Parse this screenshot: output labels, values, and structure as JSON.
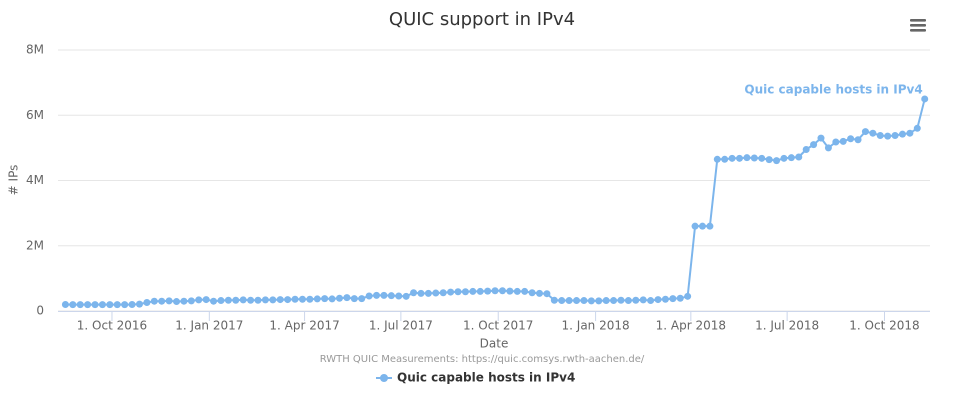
{
  "chart_data": {
    "type": "line",
    "title": "QUIC support in IPv4",
    "x_label": "Date",
    "y_label": "# IPs",
    "credits": "RWTH QUIC Measurements: https://quic.comsys.rwth-aachen.de/",
    "x": [
      "2016-08-18",
      "2016-08-25",
      "2016-09-01",
      "2016-09-08",
      "2016-09-15",
      "2016-09-22",
      "2016-09-29",
      "2016-10-06",
      "2016-10-13",
      "2016-10-20",
      "2016-10-27",
      "2016-11-03",
      "2016-11-10",
      "2016-11-17",
      "2016-11-24",
      "2016-12-01",
      "2016-12-08",
      "2016-12-15",
      "2016-12-22",
      "2016-12-29",
      "2017-01-05",
      "2017-01-12",
      "2017-01-19",
      "2017-01-26",
      "2017-02-02",
      "2017-02-09",
      "2017-02-16",
      "2017-02-23",
      "2017-03-02",
      "2017-03-09",
      "2017-03-16",
      "2017-03-23",
      "2017-03-30",
      "2017-04-06",
      "2017-04-13",
      "2017-04-20",
      "2017-04-27",
      "2017-05-04",
      "2017-05-11",
      "2017-05-18",
      "2017-05-25",
      "2017-06-01",
      "2017-06-08",
      "2017-06-15",
      "2017-06-22",
      "2017-06-29",
      "2017-07-06",
      "2017-07-13",
      "2017-07-20",
      "2017-07-27",
      "2017-08-03",
      "2017-08-10",
      "2017-08-17",
      "2017-08-24",
      "2017-08-31",
      "2017-09-07",
      "2017-09-14",
      "2017-09-21",
      "2017-09-28",
      "2017-10-05",
      "2017-10-12",
      "2017-10-19",
      "2017-10-26",
      "2017-11-02",
      "2017-11-09",
      "2017-11-16",
      "2017-11-23",
      "2017-11-30",
      "2017-12-07",
      "2017-12-14",
      "2017-12-21",
      "2017-12-28",
      "2018-01-04",
      "2018-01-11",
      "2018-01-18",
      "2018-01-25",
      "2018-02-01",
      "2018-02-08",
      "2018-02-15",
      "2018-02-22",
      "2018-03-01",
      "2018-03-08",
      "2018-03-15",
      "2018-03-22",
      "2018-03-29",
      "2018-04-05",
      "2018-04-12",
      "2018-04-19",
      "2018-04-26",
      "2018-05-03",
      "2018-05-10",
      "2018-05-17",
      "2018-05-24",
      "2018-05-31",
      "2018-06-07",
      "2018-06-14",
      "2018-06-21",
      "2018-06-28",
      "2018-07-05",
      "2018-07-12",
      "2018-07-19",
      "2018-07-26",
      "2018-08-02",
      "2018-08-09",
      "2018-08-16",
      "2018-08-23",
      "2018-08-30",
      "2018-09-06",
      "2018-09-13",
      "2018-09-20",
      "2018-09-27",
      "2018-10-04",
      "2018-10-11",
      "2018-10-18",
      "2018-10-25",
      "2018-11-01",
      "2018-11-08"
    ],
    "series": [
      {
        "name": "Quic capable hosts in IPv4",
        "color": "#7cb5ec",
        "values": [
          200000,
          195000,
          195000,
          195000,
          195000,
          195000,
          195000,
          195000,
          195000,
          200000,
          210000,
          260000,
          300000,
          300000,
          310000,
          290000,
          300000,
          310000,
          340000,
          350000,
          300000,
          320000,
          330000,
          330000,
          340000,
          330000,
          330000,
          340000,
          340000,
          350000,
          350000,
          360000,
          360000,
          360000,
          370000,
          380000,
          370000,
          390000,
          410000,
          380000,
          380000,
          460000,
          480000,
          480000,
          470000,
          460000,
          450000,
          560000,
          540000,
          540000,
          550000,
          560000,
          580000,
          590000,
          590000,
          600000,
          600000,
          610000,
          620000,
          620000,
          610000,
          600000,
          600000,
          560000,
          540000,
          530000,
          330000,
          320000,
          320000,
          320000,
          320000,
          310000,
          310000,
          320000,
          320000,
          330000,
          320000,
          330000,
          340000,
          320000,
          350000,
          360000,
          380000,
          390000,
          450000,
          2600000,
          2600000,
          2600000,
          4650000,
          4650000,
          4680000,
          4680000,
          4700000,
          4690000,
          4680000,
          4640000,
          4610000,
          4680000,
          4700000,
          4720000,
          4950000,
          5100000,
          5300000,
          5000000,
          5180000,
          5200000,
          5280000,
          5250000,
          5500000,
          5450000,
          5380000,
          5360000,
          5380000,
          5420000,
          5450000,
          5600000,
          6500000
        ]
      }
    ],
    "xlim": [
      "2016-08-11",
      "2018-11-13"
    ],
    "xticks": [
      {
        "value": "2016-10-01",
        "label": "1. Oct 2016"
      },
      {
        "value": "2017-01-01",
        "label": "1. Jan 2017"
      },
      {
        "value": "2017-04-01",
        "label": "1. Apr 2017"
      },
      {
        "value": "2017-07-01",
        "label": "1. Jul 2017"
      },
      {
        "value": "2017-10-01",
        "label": "1. Oct 2017"
      },
      {
        "value": "2018-01-01",
        "label": "1. Jan 2018"
      },
      {
        "value": "2018-04-01",
        "label": "1. Apr 2018"
      },
      {
        "value": "2018-07-01",
        "label": "1. Jul 2018"
      },
      {
        "value": "2018-10-01",
        "label": "1. Oct 2018"
      }
    ],
    "ylim": [
      0,
      8000000
    ],
    "yticks": [
      0,
      {
        "value": 2000000,
        "label": "2M"
      },
      {
        "value": 4000000,
        "label": "4M"
      },
      {
        "value": 6000000,
        "label": "6M"
      },
      {
        "value": 8000000,
        "label": "8M"
      }
    ],
    "grid": true,
    "legend": "bottom"
  }
}
